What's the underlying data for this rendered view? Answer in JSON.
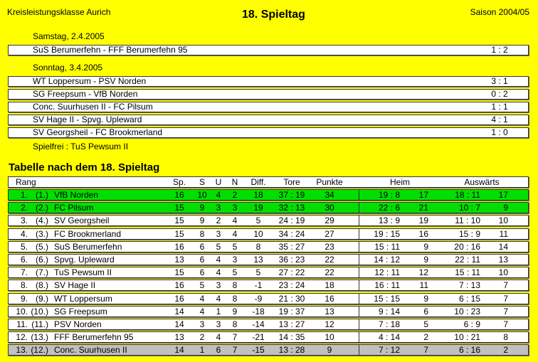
{
  "header": {
    "league": "Kreisleistungsklasse Aurich",
    "title": "18. Spieltag",
    "season": "Saison 2004/05"
  },
  "days": [
    {
      "date": "Samstag, 2.4.2005",
      "matches": [
        {
          "pairing": "SuS Berumerfehn - FFF Berumerfehn 95",
          "result": "1 : 2"
        }
      ]
    },
    {
      "date": "Sonntag, 3.4.2005",
      "matches": [
        {
          "pairing": "WT Loppersum - PSV Norden",
          "result": "3 : 1"
        },
        {
          "pairing": "SG Freepsum - VfB Norden",
          "result": "0 : 2"
        },
        {
          "pairing": "Conc. Suurhusen II - FC Pilsum",
          "result": "1 : 1"
        },
        {
          "pairing": "SV Hage II - Spvg. Upleward",
          "result": "4 : 1"
        },
        {
          "pairing": "SV Georgsheil - FC Brookmerland",
          "result": "1 : 0"
        }
      ]
    }
  ],
  "bye": "Spielfrei : TuS Pewsum II",
  "table": {
    "title": "Tabelle nach dem 18. Spieltag",
    "headers": {
      "rank": "Rang",
      "sp": "Sp.",
      "s": "S",
      "u": "U",
      "n": "N",
      "diff": "Diff.",
      "tore": "Tore",
      "punkte": "Punkte",
      "heim": "Heim",
      "ausw": "Auswärts"
    },
    "colors": {
      "promotion": "#00e000",
      "relegation": "#c0c0c0",
      "normal": "#ffffff"
    },
    "rows": [
      {
        "pos": "1.",
        "prev": "(1.)",
        "team": "VfB Norden",
        "sp": "16",
        "s": "10",
        "u": "4",
        "n": "2",
        "diff": "18",
        "tore": "37 : 19",
        "pts": "34",
        "heim": "19 : 8",
        "heim_pts": "17",
        "ausw": "18 : 11",
        "ausw_pts": "17",
        "status": "promotion"
      },
      {
        "pos": "2.",
        "prev": "(2.)",
        "team": "FC Pilsum",
        "sp": "15",
        "s": "9",
        "u": "3",
        "n": "3",
        "diff": "19",
        "tore": "32 : 13",
        "pts": "30",
        "heim": "22 : 6",
        "heim_pts": "21",
        "ausw": "10 : 7",
        "ausw_pts": "9",
        "status": "promotion"
      },
      {
        "pos": "3.",
        "prev": "(4.)",
        "team": "SV Georgsheil",
        "sp": "15",
        "s": "9",
        "u": "2",
        "n": "4",
        "diff": "5",
        "tore": "24 : 19",
        "pts": "29",
        "heim": "13 : 9",
        "heim_pts": "19",
        "ausw": "11 : 10",
        "ausw_pts": "10",
        "status": "normal"
      },
      {
        "pos": "4.",
        "prev": "(3.)",
        "team": "FC Brookmerland",
        "sp": "15",
        "s": "8",
        "u": "3",
        "n": "4",
        "diff": "10",
        "tore": "34 : 24",
        "pts": "27",
        "heim": "19 : 15",
        "heim_pts": "16",
        "ausw": "15 : 9",
        "ausw_pts": "11",
        "status": "normal"
      },
      {
        "pos": "5.",
        "prev": "(5.)",
        "team": "SuS Berumerfehn",
        "sp": "16",
        "s": "6",
        "u": "5",
        "n": "5",
        "diff": "8",
        "tore": "35 : 27",
        "pts": "23",
        "heim": "15 : 11",
        "heim_pts": "9",
        "ausw": "20 : 16",
        "ausw_pts": "14",
        "status": "normal"
      },
      {
        "pos": "6.",
        "prev": "(6.)",
        "team": "Spvg. Upleward",
        "sp": "13",
        "s": "6",
        "u": "4",
        "n": "3",
        "diff": "13",
        "tore": "36 : 23",
        "pts": "22",
        "heim": "14 : 12",
        "heim_pts": "9",
        "ausw": "22 : 11",
        "ausw_pts": "13",
        "status": "normal"
      },
      {
        "pos": "7.",
        "prev": "(7.)",
        "team": "TuS Pewsum II",
        "sp": "15",
        "s": "6",
        "u": "4",
        "n": "5",
        "diff": "5",
        "tore": "27 : 22",
        "pts": "22",
        "heim": "12 : 11",
        "heim_pts": "12",
        "ausw": "15 : 11",
        "ausw_pts": "10",
        "status": "normal"
      },
      {
        "pos": "8.",
        "prev": "(8.)",
        "team": "SV Hage II",
        "sp": "16",
        "s": "5",
        "u": "3",
        "n": "8",
        "diff": "-1",
        "tore": "23 : 24",
        "pts": "18",
        "heim": "16 : 11",
        "heim_pts": "11",
        "ausw": "7 : 13",
        "ausw_pts": "7",
        "status": "normal"
      },
      {
        "pos": "9.",
        "prev": "(9.)",
        "team": "WT Loppersum",
        "sp": "16",
        "s": "4",
        "u": "4",
        "n": "8",
        "diff": "-9",
        "tore": "21 : 30",
        "pts": "16",
        "heim": "15 : 15",
        "heim_pts": "9",
        "ausw": "6 : 15",
        "ausw_pts": "7",
        "status": "normal"
      },
      {
        "pos": "10.",
        "prev": "(10.)",
        "team": "SG Freepsum",
        "sp": "14",
        "s": "4",
        "u": "1",
        "n": "9",
        "diff": "-18",
        "tore": "19 : 37",
        "pts": "13",
        "heim": "9 : 14",
        "heim_pts": "6",
        "ausw": "10 : 23",
        "ausw_pts": "7",
        "status": "normal"
      },
      {
        "pos": "11.",
        "prev": "(11.)",
        "team": "PSV Norden",
        "sp": "14",
        "s": "3",
        "u": "3",
        "n": "8",
        "diff": "-14",
        "tore": "13 : 27",
        "pts": "12",
        "heim": "7 : 18",
        "heim_pts": "5",
        "ausw": "6 : 9",
        "ausw_pts": "7",
        "status": "normal"
      },
      {
        "pos": "12.",
        "prev": "(13.)",
        "team": "FFF Berumerfehn 95",
        "sp": "13",
        "s": "2",
        "u": "4",
        "n": "7",
        "diff": "-21",
        "tore": "14 : 35",
        "pts": "10",
        "heim": "4 : 14",
        "heim_pts": "2",
        "ausw": "10 : 21",
        "ausw_pts": "8",
        "status": "normal"
      },
      {
        "pos": "13.",
        "prev": "(12.)",
        "team": "Conc. Suurhusen II",
        "sp": "14",
        "s": "1",
        "u": "6",
        "n": "7",
        "diff": "-15",
        "tore": "13 : 28",
        "pts": "9",
        "heim": "7 : 12",
        "heim_pts": "7",
        "ausw": "6 : 16",
        "ausw_pts": "2",
        "status": "relegation"
      }
    ]
  }
}
